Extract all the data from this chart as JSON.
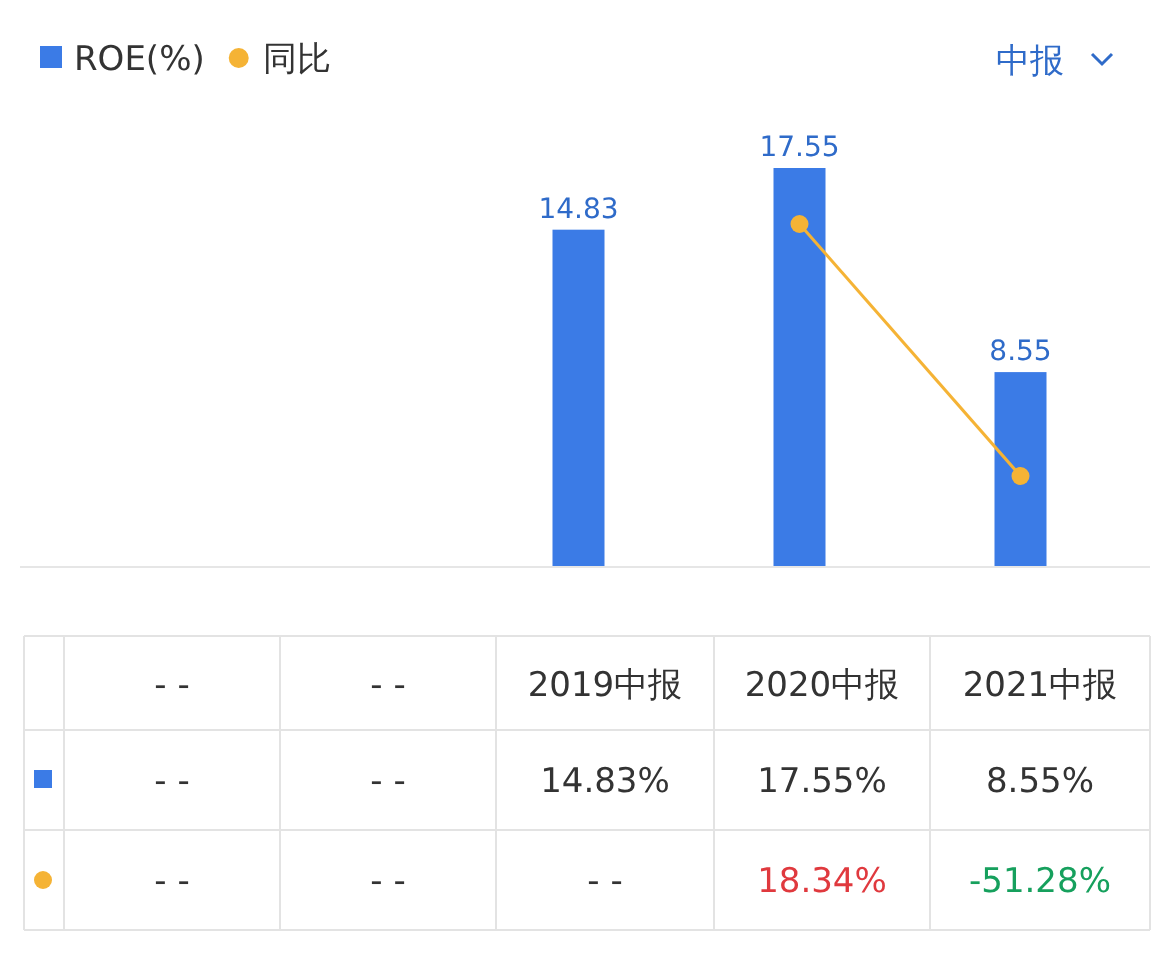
{
  "chart_data": {
    "type": "bar",
    "categories": [
      "- -",
      "- -",
      "2019中报",
      "2020中报",
      "2021中报"
    ],
    "series": [
      {
        "name": "ROE(%)",
        "color": "#3b7be6",
        "values": [
          null,
          null,
          14.83,
          17.55,
          8.55
        ],
        "value_labels": [
          null,
          null,
          "14.83",
          "17.55",
          "8.55"
        ]
      },
      {
        "name": "同比",
        "type": "line",
        "axis": "y2",
        "color": "#f5b335",
        "marker": "circle",
        "values": [
          null,
          null,
          null,
          18.34,
          -51.28
        ],
        "value_labels": [
          "- -",
          "- -",
          "- -",
          "18.34%",
          "-51.28%"
        ]
      }
    ],
    "legend": "top left",
    "annotations": [
      "中报",
      "- -",
      "- -",
      "14.83%",
      "17.55%",
      "8.55%"
    ]
  }
}
